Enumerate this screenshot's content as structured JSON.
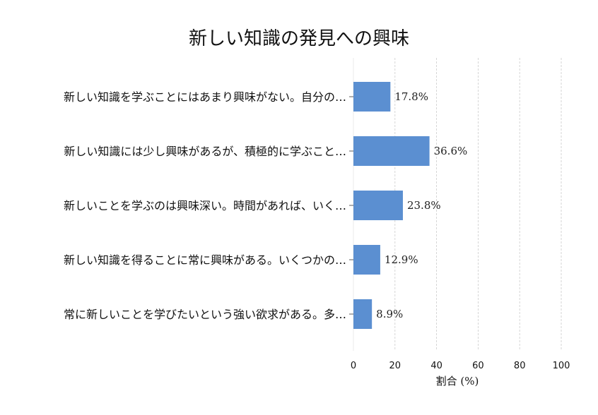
{
  "chart_data": {
    "type": "bar",
    "orientation": "horizontal",
    "title": "新しい知識の発見への興味",
    "xlabel": "割合 (%)",
    "ylabel": "",
    "xlim": [
      0,
      100
    ],
    "xticks": [
      0,
      20,
      40,
      60,
      80,
      100
    ],
    "grid": "vertical dashed",
    "categories": [
      "新しい知識を学ぶことにはあまり興味がない。自分の…",
      "新しい知識には少し興味があるが、積極的に学ぶこと…",
      "新しいことを学ぶのは興味深い。時間があれば、いく…",
      "新しい知識を得ることに常に興味がある。いくつかの…",
      "常に新しいことを学びたいという強い欲求がある。多…"
    ],
    "values": [
      17.8,
      36.6,
      23.8,
      12.9,
      8.9
    ],
    "data_labels": [
      "17.8%",
      "36.6%",
      "23.8%",
      "12.9%",
      "8.9%"
    ],
    "bar_color": "#5b8fd1"
  }
}
